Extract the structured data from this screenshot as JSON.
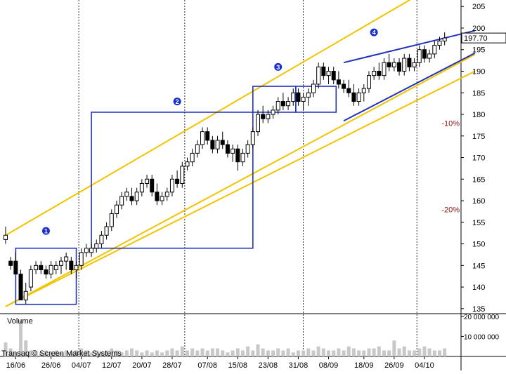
{
  "chart_data": {
    "type": "candlestick",
    "title": "",
    "watermark": "Transaq © Screen Market Systems",
    "volume_label": "Volume",
    "price_axis": {
      "ylim": [
        134,
        206.5
      ],
      "ticks": [
        135,
        140,
        145,
        150,
        155,
        160,
        165,
        170,
        175,
        180,
        185,
        190,
        195,
        200,
        205
      ],
      "last_price": "197.70"
    },
    "volume_axis": {
      "ylim": [
        0,
        21000000
      ],
      "ticks": [
        {
          "value": 10000000,
          "label": "10 000 000"
        },
        {
          "value": 20000000,
          "label": "20 000 000"
        }
      ]
    },
    "x_axis": {
      "ticks": [
        {
          "label": "16/06",
          "bar": 2
        },
        {
          "label": "26/06",
          "bar": 9
        },
        {
          "label": "04/07",
          "bar": 15
        },
        {
          "label": "12/07",
          "bar": 21
        },
        {
          "label": "20/07",
          "bar": 27
        },
        {
          "label": "28/07",
          "bar": 33
        },
        {
          "label": "07/08",
          "bar": 40
        },
        {
          "label": "15/08",
          "bar": 46
        },
        {
          "label": "23/08",
          "bar": 52
        },
        {
          "label": "31/08",
          "bar": 58
        },
        {
          "label": "08/09",
          "bar": 64
        },
        {
          "label": "18/09",
          "bar": 71
        },
        {
          "label": "26/09",
          "bar": 77
        },
        {
          "label": "04/10",
          "bar": 83
        }
      ],
      "dashed_at_bars": [
        14.5,
        35.5,
        59,
        81.5
      ]
    },
    "ohlc": [
      [
        151,
        154,
        150,
        152
      ],
      [
        146,
        147,
        144,
        145
      ],
      [
        146,
        148,
        143,
        143
      ],
      [
        143,
        144,
        137,
        137
      ],
      [
        137,
        141,
        136,
        139
      ],
      [
        140,
        145,
        139,
        144
      ],
      [
        144,
        146,
        143,
        145
      ],
      [
        145,
        146,
        143,
        144
      ],
      [
        144,
        145,
        142,
        143
      ],
      [
        143,
        146,
        142,
        145
      ],
      [
        144,
        146,
        143,
        145
      ],
      [
        145,
        147,
        143,
        146
      ],
      [
        146,
        148,
        144,
        147
      ],
      [
        146,
        147,
        143,
        144
      ],
      [
        144,
        146,
        142,
        145
      ],
      [
        145,
        149,
        144,
        148
      ],
      [
        148,
        150,
        147,
        149
      ],
      [
        148,
        150,
        147,
        149
      ],
      [
        149,
        151,
        148,
        150
      ],
      [
        150,
        153,
        149,
        152
      ],
      [
        152,
        155,
        151,
        154
      ],
      [
        154,
        158,
        153,
        157
      ],
      [
        157,
        160,
        156,
        159
      ],
      [
        159,
        162,
        158,
        161
      ],
      [
        161,
        163,
        160,
        162
      ],
      [
        161,
        163,
        159,
        160
      ],
      [
        160,
        163,
        159,
        162
      ],
      [
        162,
        165,
        161,
        164
      ],
      [
        164,
        166,
        163,
        165
      ],
      [
        165,
        166,
        161,
        162
      ],
      [
        162,
        164,
        159,
        160
      ],
      [
        160,
        162,
        159,
        161
      ],
      [
        161,
        163,
        160,
        162
      ],
      [
        162,
        166,
        161,
        165
      ],
      [
        165,
        167,
        163,
        164
      ],
      [
        164,
        169,
        163,
        168
      ],
      [
        168,
        170,
        167,
        169
      ],
      [
        169,
        172,
        168,
        171
      ],
      [
        171,
        174,
        170,
        173
      ],
      [
        173,
        177,
        172,
        176
      ],
      [
        176,
        177,
        173,
        174
      ],
      [
        174,
        175,
        171,
        172
      ],
      [
        172,
        175,
        171,
        174
      ],
      [
        174,
        176,
        172,
        173
      ],
      [
        173,
        174,
        170,
        171
      ],
      [
        171,
        173,
        169,
        172
      ],
      [
        172,
        173,
        167,
        169
      ],
      [
        169,
        172,
        168,
        171
      ],
      [
        171,
        174,
        170,
        173
      ],
      [
        173,
        177,
        172,
        176
      ],
      [
        176,
        181,
        175,
        180
      ],
      [
        180,
        182,
        178,
        179
      ],
      [
        179,
        181,
        178,
        180
      ],
      [
        180,
        182,
        179,
        181
      ],
      [
        181,
        184,
        180,
        183
      ],
      [
        183,
        185,
        181,
        182
      ],
      [
        182,
        184,
        181,
        183
      ],
      [
        183,
        186,
        182,
        185
      ],
      [
        185,
        186,
        182,
        183
      ],
      [
        183,
        185,
        181,
        184
      ],
      [
        184,
        186,
        182,
        185
      ],
      [
        185,
        188,
        184,
        187
      ],
      [
        187,
        192,
        186,
        191
      ],
      [
        191,
        192,
        188,
        189
      ],
      [
        189,
        191,
        187,
        190
      ],
      [
        190,
        191,
        187,
        188
      ],
      [
        188,
        190,
        186,
        187
      ],
      [
        187,
        188,
        185,
        186
      ],
      [
        186,
        188,
        184,
        185
      ],
      [
        185,
        187,
        182,
        183
      ],
      [
        183,
        186,
        182,
        185
      ],
      [
        185,
        187,
        183,
        186
      ],
      [
        186,
        190,
        185,
        189
      ],
      [
        189,
        191,
        188,
        190
      ],
      [
        190,
        192,
        188,
        189
      ],
      [
        189,
        193,
        188,
        192
      ],
      [
        192,
        194,
        190,
        191
      ],
      [
        191,
        193,
        190,
        192
      ],
      [
        192,
        193,
        189,
        190
      ],
      [
        190,
        194,
        189,
        193
      ],
      [
        193,
        194,
        190,
        191
      ],
      [
        191,
        193,
        190,
        192
      ],
      [
        192,
        196,
        191,
        195
      ],
      [
        195,
        196,
        192,
        193
      ],
      [
        193,
        195,
        192,
        194
      ],
      [
        194,
        197,
        193,
        196
      ],
      [
        196,
        198,
        195,
        197
      ],
      [
        197,
        199,
        196,
        197.7
      ]
    ],
    "volume": [
      7,
      4,
      2,
      18,
      8,
      3,
      3,
      2,
      3,
      2,
      3,
      2,
      3,
      2,
      3,
      4,
      3,
      2,
      3,
      2,
      3,
      4,
      3,
      2,
      3,
      4,
      3,
      2,
      3,
      2,
      3,
      2,
      3,
      4,
      3,
      5,
      3,
      4,
      3,
      4,
      3,
      4,
      4,
      3,
      2,
      3,
      4,
      3,
      5,
      3,
      6,
      4,
      3,
      3,
      4,
      3,
      4,
      2,
      3,
      3,
      4,
      3,
      5,
      4,
      3,
      3,
      4,
      3,
      5,
      4,
      3,
      3,
      4,
      4,
      5,
      3,
      3,
      8,
      4,
      5,
      3,
      3,
      4,
      5,
      4,
      3,
      3,
      4
    ],
    "trend_lines": [
      {
        "color": "#f0c400",
        "from": [
          0,
          152
        ],
        "to": [
          93,
          215.3
        ]
      },
      {
        "color": "#f0c400",
        "from": [
          0,
          135.5
        ],
        "to": [
          93,
          193.9
        ]
      },
      {
        "color": "#f0c400",
        "from": [
          0,
          135.5
        ],
        "to": [
          93,
          190
        ]
      },
      {
        "color": "#2233bb",
        "from": [
          67,
          192
        ],
        "to": [
          93,
          199.4
        ]
      },
      {
        "color": "#2233bb",
        "from": [
          67,
          178.5
        ],
        "to": [
          93,
          194.2
        ]
      }
    ],
    "boxes": [
      {
        "color": "#2233bb",
        "x0": 2,
        "x1": 14,
        "y0": 136,
        "y1": 149
      },
      {
        "color": "#2233bb",
        "x0": 17,
        "x1": 49,
        "y0": 149,
        "y1": 180.5
      },
      {
        "color": "#2233bb",
        "x0": 49,
        "x1": 57.5,
        "y0": 180.5,
        "y1": 186.5
      },
      {
        "color": "#2233bb",
        "x0": 57.5,
        "x1": 65.5,
        "y0": 180.5,
        "y1": 186.5
      }
    ],
    "markers": [
      {
        "label": "1",
        "bar": 8,
        "price": 153
      },
      {
        "label": "2",
        "bar": 34,
        "price": 183
      },
      {
        "label": "3",
        "bar": 54,
        "price": 191
      },
      {
        "label": "4",
        "bar": 73,
        "price": 199
      }
    ],
    "percent_labels": [
      {
        "label": "-10%",
        "price": 178
      },
      {
        "label": "-20%",
        "price": 158
      }
    ]
  }
}
